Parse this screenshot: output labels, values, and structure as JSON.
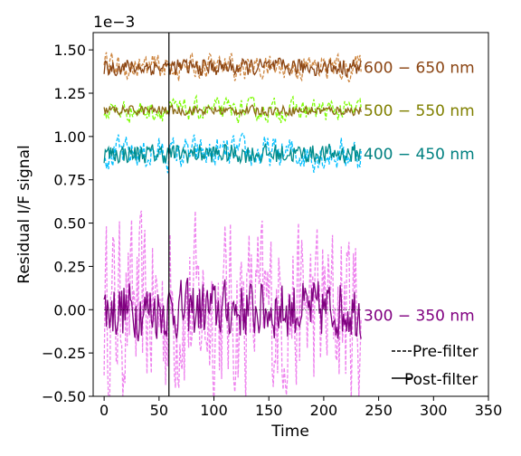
{
  "chart_data": {
    "type": "line",
    "title": "",
    "xlabel": "Time",
    "ylabel": "Residual I/F signal",
    "y_offset_label": "1e−3",
    "xlim": [
      -10,
      350
    ],
    "ylim": [
      -0.5,
      1.6
    ],
    "x_ticks": [
      0,
      50,
      100,
      150,
      200,
      250,
      300,
      350
    ],
    "x_tick_labels": [
      "0",
      "50",
      "100",
      "150",
      "200",
      "250",
      "300",
      "350"
    ],
    "y_ticks": [
      -0.5,
      -0.25,
      0.0,
      0.25,
      0.5,
      0.75,
      1.0,
      1.25,
      1.5
    ],
    "y_tick_labels": [
      "−0.50",
      "−0.25",
      "0.00",
      "0.25",
      "0.50",
      "0.75",
      "1.00",
      "1.25",
      "1.50"
    ],
    "x_max": 234,
    "vertical_line_x": 59,
    "grid": false,
    "legend": [
      {
        "label": "Pre-filter",
        "style": "dashed"
      },
      {
        "label": "Post-filter",
        "style": "solid"
      }
    ],
    "legend_position": "lower-right",
    "bands": [
      {
        "label": "300 − 350 nm",
        "label_color": "#800080",
        "baseline": 0.0,
        "pre_color": "#ee82ee",
        "post_color": "#800080",
        "pre_amplitude": 0.42,
        "post_amplitude": 0.12
      },
      {
        "label": "400 − 450 nm",
        "label_color": "#008080",
        "baseline": 0.9,
        "pre_color": "#00bfff",
        "post_color": "#008b8b",
        "pre_amplitude": 0.09,
        "post_amplitude": 0.04
      },
      {
        "label": "500 − 550 nm",
        "label_color": "#808000",
        "baseline": 1.15,
        "pre_color": "#7cfc00",
        "post_color": "#8b6914",
        "pre_amplitude": 0.06,
        "post_amplitude": 0.02
      },
      {
        "label": "600 − 650 nm",
        "label_color": "#8b4513",
        "baseline": 1.4,
        "pre_color": "#cd853f",
        "post_color": "#8b4513",
        "pre_amplitude": 0.07,
        "post_amplitude": 0.035
      }
    ]
  }
}
